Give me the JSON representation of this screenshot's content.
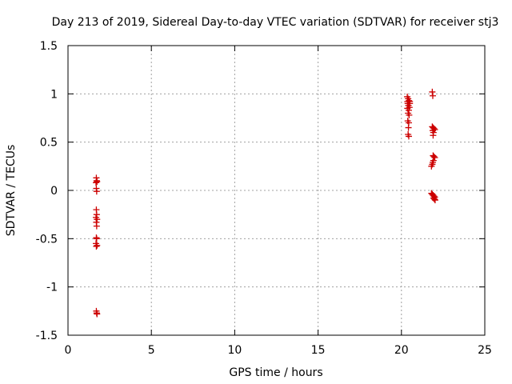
{
  "chart_data": {
    "type": "scatter",
    "title": "Day 213 of 2019, Sidereal Day-to-day VTEC variation (SDTVAR) for receiver stj3",
    "xlabel": "GPS time / hours",
    "ylabel": "SDTVAR / TECUs",
    "xlim": [
      0,
      25
    ],
    "ylim": [
      -1.5,
      1.5
    ],
    "xticks": [
      "0",
      "5",
      "10",
      "15",
      "20",
      "25"
    ],
    "yticks": [
      "-1.5",
      "-1",
      "-0.5",
      "0",
      "0.5",
      "1",
      "1.5"
    ],
    "grid": true,
    "marker": "plus",
    "marker_color": "#cc0000",
    "points": [
      [
        1.7,
        0.13
      ],
      [
        1.72,
        0.1
      ],
      [
        1.68,
        0.08
      ],
      [
        1.74,
        0.09
      ],
      [
        1.7,
        0.02
      ],
      [
        1.72,
        -0.01
      ],
      [
        1.7,
        -0.2
      ],
      [
        1.72,
        -0.25
      ],
      [
        1.68,
        -0.28
      ],
      [
        1.74,
        -0.3
      ],
      [
        1.7,
        -0.33
      ],
      [
        1.72,
        -0.37
      ],
      [
        1.7,
        -0.49
      ],
      [
        1.72,
        -0.5
      ],
      [
        1.68,
        -0.55
      ],
      [
        1.74,
        -0.57
      ],
      [
        1.7,
        -0.58
      ],
      [
        1.7,
        -1.25
      ],
      [
        1.72,
        -1.27
      ],
      [
        1.74,
        -1.28
      ],
      [
        20.35,
        0.97
      ],
      [
        20.4,
        0.95
      ],
      [
        20.45,
        0.93
      ],
      [
        20.5,
        0.92
      ],
      [
        20.38,
        0.9
      ],
      [
        20.42,
        0.88
      ],
      [
        20.48,
        0.86
      ],
      [
        20.36,
        0.85
      ],
      [
        20.44,
        0.83
      ],
      [
        20.4,
        0.8
      ],
      [
        20.46,
        0.78
      ],
      [
        20.38,
        0.72
      ],
      [
        20.44,
        0.7
      ],
      [
        20.42,
        0.65
      ],
      [
        20.4,
        0.58
      ],
      [
        20.44,
        0.56
      ],
      [
        20.5,
        0.9
      ],
      [
        20.36,
        0.92
      ],
      [
        21.85,
        1.02
      ],
      [
        21.88,
        0.98
      ],
      [
        21.85,
        0.66
      ],
      [
        21.9,
        0.65
      ],
      [
        21.95,
        0.64
      ],
      [
        22.0,
        0.63
      ],
      [
        21.88,
        0.62
      ],
      [
        21.92,
        0.6
      ],
      [
        21.9,
        0.57
      ],
      [
        21.9,
        0.36
      ],
      [
        21.95,
        0.35
      ],
      [
        22.0,
        0.34
      ],
      [
        21.92,
        0.31
      ],
      [
        21.88,
        0.29
      ],
      [
        21.85,
        0.27
      ],
      [
        21.8,
        0.25
      ],
      [
        21.8,
        -0.03
      ],
      [
        21.85,
        -0.04
      ],
      [
        21.9,
        -0.05
      ],
      [
        21.95,
        -0.06
      ],
      [
        22.0,
        -0.07
      ],
      [
        21.92,
        -0.08
      ],
      [
        21.98,
        -0.09
      ],
      [
        22.02,
        -0.1
      ]
    ]
  }
}
